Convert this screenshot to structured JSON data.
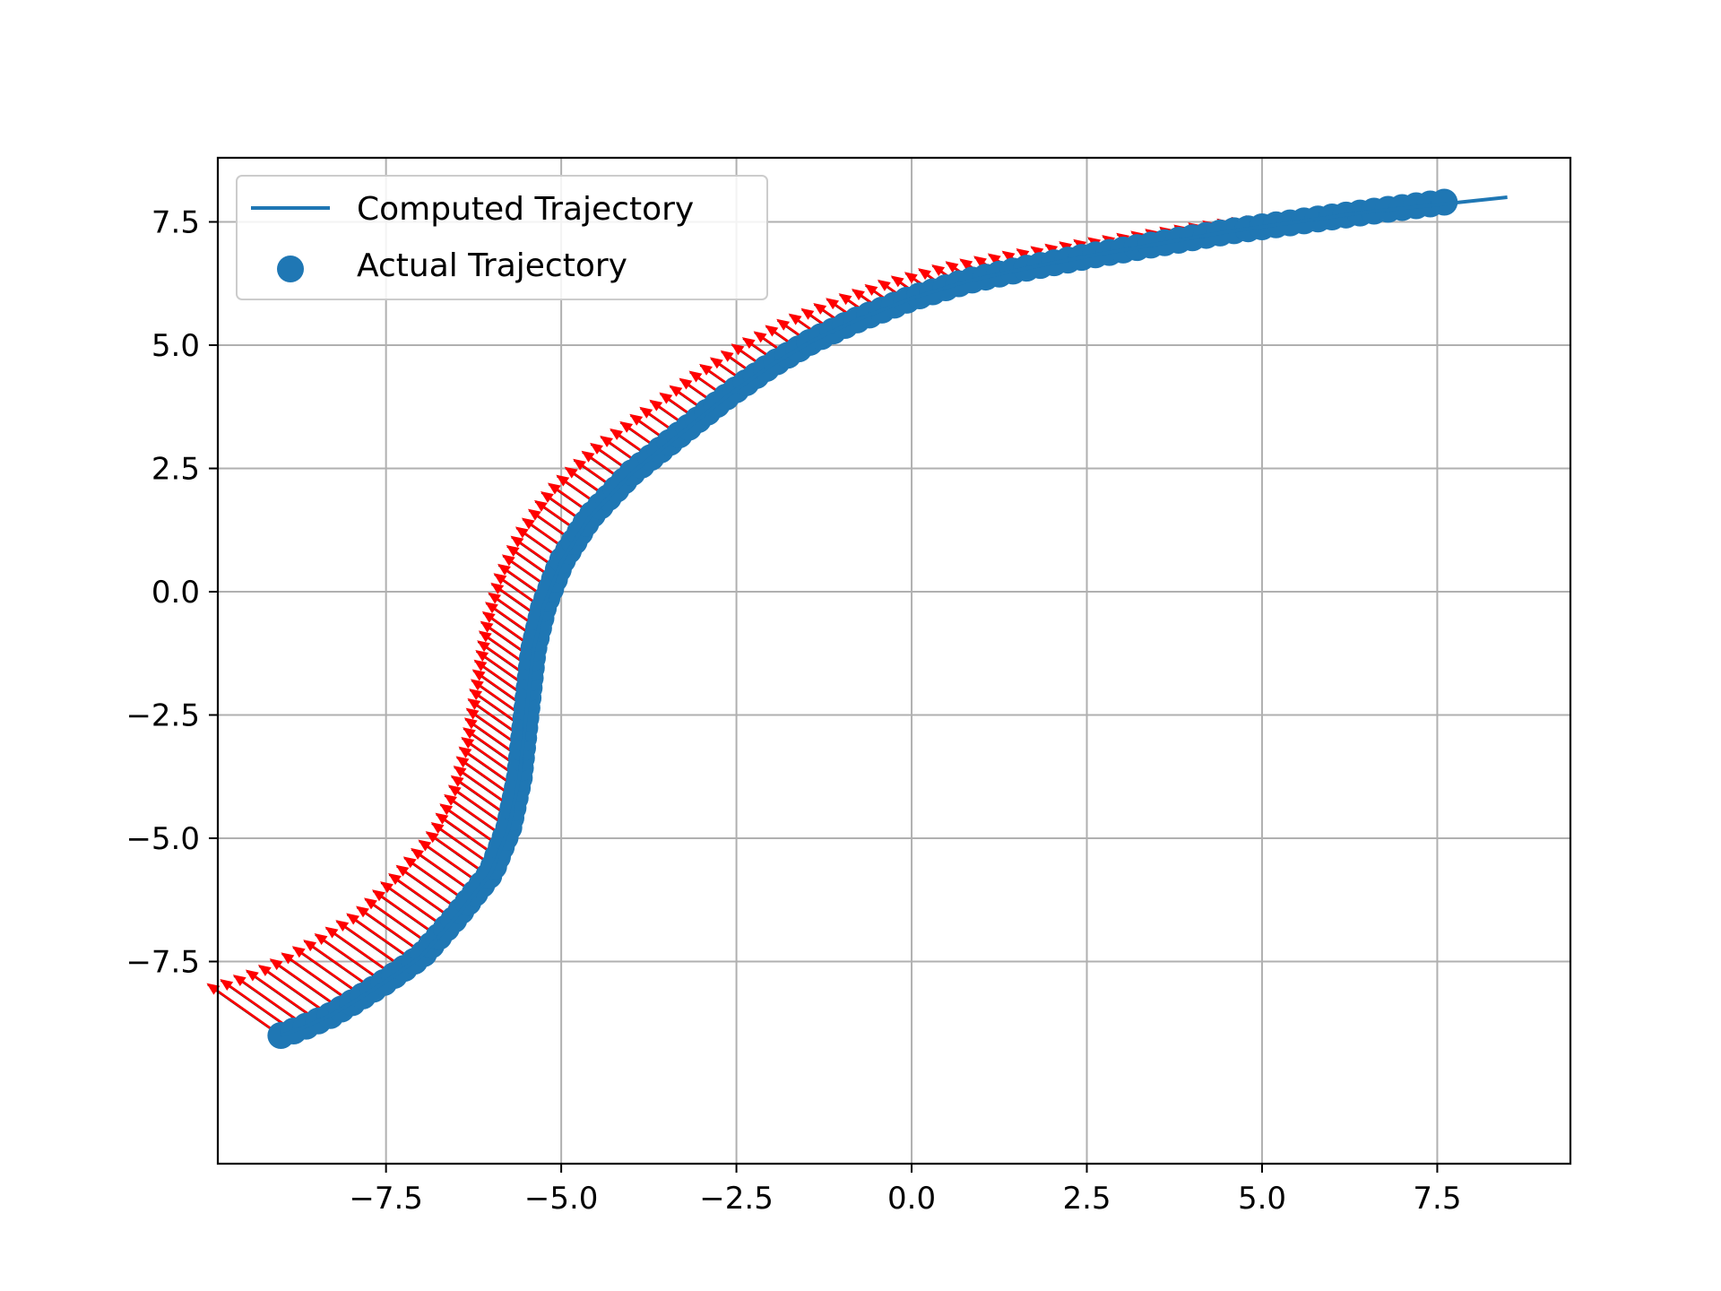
{
  "chart_data": {
    "type": "scatter",
    "title": "",
    "xlabel": "",
    "ylabel": "",
    "xlim": [
      -9.9,
      9.4
    ],
    "ylim": [
      -11.6,
      8.8
    ],
    "grid": true,
    "legend_position": "upper-left",
    "x_ticks": [
      -7.5,
      -5.0,
      -2.5,
      0.0,
      2.5,
      5.0,
      7.5
    ],
    "y_ticks": [
      -7.5,
      -5.0,
      -2.5,
      0.0,
      2.5,
      5.0,
      7.5
    ],
    "x_tick_labels": [
      "−7.5",
      "−5.0",
      "−2.5",
      "0.0",
      "2.5",
      "5.0",
      "7.5"
    ],
    "y_tick_labels": [
      "−7.5",
      "−5.0",
      "−2.5",
      "0.0",
      "2.5",
      "5.0",
      "7.5"
    ],
    "legend": [
      {
        "label": "Computed Trajectory",
        "marker": "line",
        "color": "#1f77b4"
      },
      {
        "label": "Actual Trajectory",
        "marker": "circle",
        "color": "#1f77b4"
      }
    ],
    "colors": {
      "series": "#1f77b4",
      "arrows": "#ff0000",
      "arrow_shadow": "#000000",
      "grid": "#b0b0b0"
    },
    "series": [
      {
        "name": "Computed Trajectory",
        "kind": "line",
        "points": [
          [
            -9.0,
            -9.0
          ],
          [
            -8.7,
            -8.85
          ],
          [
            -8.3,
            -8.6
          ],
          [
            -8.0,
            -8.35
          ],
          [
            -7.5,
            -7.9
          ],
          [
            -7.0,
            -7.4
          ],
          [
            -6.5,
            -6.6
          ],
          [
            -6.0,
            -5.7
          ],
          [
            -5.75,
            -4.8
          ],
          [
            -5.6,
            -3.8
          ],
          [
            -5.5,
            -2.5
          ],
          [
            -5.4,
            -1.2
          ],
          [
            -5.25,
            -0.3
          ],
          [
            -5.0,
            0.6
          ],
          [
            -4.6,
            1.5
          ],
          [
            -4.0,
            2.4
          ],
          [
            -3.3,
            3.2
          ],
          [
            -2.6,
            4.0
          ],
          [
            -2.0,
            4.6
          ],
          [
            -1.4,
            5.1
          ],
          [
            -0.8,
            5.5
          ],
          [
            0.0,
            5.95
          ],
          [
            0.8,
            6.3
          ],
          [
            1.6,
            6.55
          ],
          [
            2.5,
            6.8
          ],
          [
            3.5,
            7.05
          ],
          [
            4.5,
            7.3
          ],
          [
            5.5,
            7.5
          ],
          [
            6.5,
            7.7
          ],
          [
            7.5,
            7.85
          ],
          [
            8.5,
            8.0
          ]
        ]
      },
      {
        "name": "Actual Trajectory",
        "kind": "scatter",
        "points": [
          [
            -9.0,
            -9.0
          ],
          [
            -8.7,
            -8.85
          ],
          [
            -8.3,
            -8.6
          ],
          [
            -8.0,
            -8.35
          ],
          [
            -7.5,
            -7.9
          ],
          [
            -7.0,
            -7.4
          ],
          [
            -6.5,
            -6.6
          ],
          [
            -6.0,
            -5.7
          ],
          [
            -5.75,
            -4.8
          ],
          [
            -5.6,
            -3.8
          ],
          [
            -5.5,
            -2.5
          ],
          [
            -5.4,
            -1.2
          ],
          [
            -5.25,
            -0.3
          ],
          [
            -5.0,
            0.6
          ],
          [
            -4.6,
            1.5
          ],
          [
            -4.0,
            2.4
          ],
          [
            -3.3,
            3.2
          ],
          [
            -2.6,
            4.0
          ],
          [
            -2.0,
            4.6
          ],
          [
            -1.4,
            5.1
          ],
          [
            -0.8,
            5.5
          ],
          [
            0.0,
            5.95
          ],
          [
            0.8,
            6.3
          ],
          [
            1.6,
            6.55
          ],
          [
            2.5,
            6.8
          ],
          [
            3.5,
            7.05
          ],
          [
            4.5,
            7.3
          ],
          [
            5.5,
            7.5
          ],
          [
            6.5,
            7.7
          ],
          [
            7.6,
            7.9
          ]
        ]
      }
    ],
    "arrows": {
      "from_series": "Actual Trajectory",
      "start_point": [
        -9.0,
        -9.0
      ],
      "end_point": [
        7.6,
        7.9
      ],
      "approx_count": 130,
      "direction_deg": 135,
      "length": [
        1.5,
        0.2
      ],
      "color": "#ff0000"
    }
  }
}
